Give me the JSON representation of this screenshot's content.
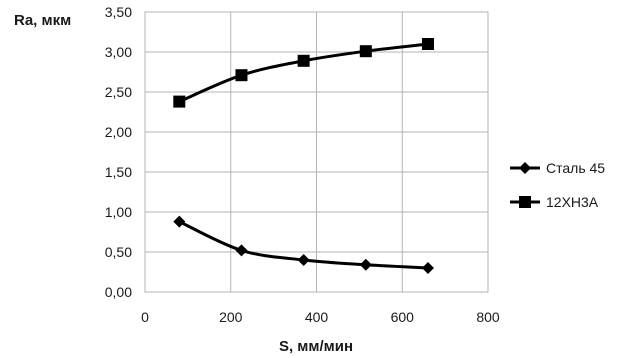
{
  "chart_data": {
    "type": "line",
    "ylabel": "Ra, мкм",
    "xlabel": "S, мм/мин",
    "xlim": [
      0,
      800
    ],
    "ylim": [
      0,
      3.5
    ],
    "x_ticks": [
      0,
      200,
      400,
      600,
      800
    ],
    "y_ticks": [
      "0,00",
      "0,50",
      "1,00",
      "1,50",
      "2,00",
      "2,50",
      "3,00",
      "3,50"
    ],
    "grid": "vertical and horizontal",
    "legend_position": "right",
    "series": [
      {
        "name": "Сталь 45",
        "marker": "diamond",
        "color": "#000000",
        "x": [
          80,
          225,
          370,
          515,
          660
        ],
        "y": [
          0.88,
          0.52,
          0.4,
          0.34,
          0.3
        ]
      },
      {
        "name": "12ХН3А",
        "marker": "square",
        "color": "#000000",
        "x": [
          80,
          225,
          370,
          515,
          660
        ],
        "y": [
          2.38,
          2.71,
          2.89,
          3.01,
          3.1
        ]
      }
    ]
  }
}
